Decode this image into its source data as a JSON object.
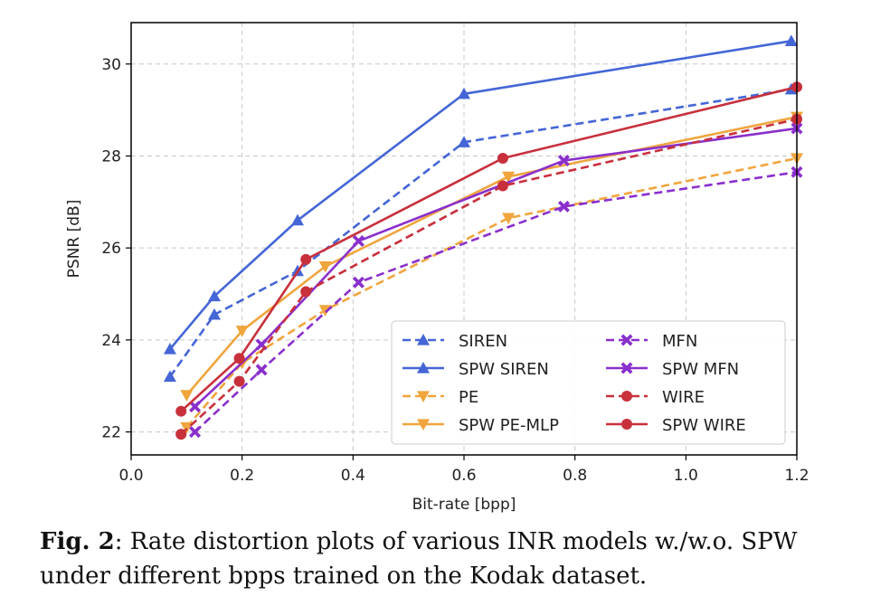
{
  "chart_data": {
    "type": "line",
    "xlabel": "Bit-rate [bpp]",
    "ylabel": "PSNR [dB]",
    "xlim": [
      0.0,
      1.2
    ],
    "ylim": [
      21.5,
      30.9
    ],
    "xticks": [
      0.0,
      0.2,
      0.4,
      0.6,
      0.8,
      1.0,
      1.2
    ],
    "xtick_labels": [
      "0.0",
      "0.2",
      "0.4",
      "0.6",
      "0.8",
      "1.0",
      "1.2"
    ],
    "yticks": [
      22,
      24,
      26,
      28,
      30
    ],
    "ytick_labels": [
      "22",
      "24",
      "26",
      "28",
      "30"
    ],
    "grid": true,
    "legend_placement": "lower-right",
    "series": [
      {
        "name": "SIREN",
        "color": "#4466d6",
        "dash": true,
        "marker": "triangle-up",
        "x": [
          0.07,
          0.15,
          0.3,
          0.6,
          1.19
        ],
        "y": [
          23.2,
          24.55,
          25.5,
          28.3,
          29.45
        ]
      },
      {
        "name": "SPW SIREN",
        "color": "#4466d6",
        "dash": false,
        "marker": "triangle-up",
        "x": [
          0.07,
          0.15,
          0.3,
          0.6,
          1.19
        ],
        "y": [
          23.8,
          24.95,
          26.6,
          29.35,
          30.5
        ]
      },
      {
        "name": "PE",
        "color": "#f0a53d",
        "dash": true,
        "marker": "triangle-down",
        "x": [
          0.1,
          0.2,
          0.35,
          0.68,
          1.2
        ],
        "y": [
          22.1,
          23.5,
          24.65,
          26.65,
          27.95
        ]
      },
      {
        "name": "SPW PE-MLP",
        "color": "#f0a53d",
        "dash": false,
        "marker": "triangle-down",
        "x": [
          0.1,
          0.2,
          0.35,
          0.68,
          1.2
        ],
        "y": [
          22.8,
          24.2,
          25.6,
          27.55,
          28.85
        ]
      },
      {
        "name": "MFN",
        "color": "#8a2fcc",
        "dash": true,
        "marker": "x-filled",
        "x": [
          0.115,
          0.235,
          0.41,
          0.78,
          1.2
        ],
        "y": [
          22.0,
          23.35,
          25.25,
          26.9,
          27.65
        ]
      },
      {
        "name": "SPW MFN",
        "color": "#8a2fcc",
        "dash": false,
        "marker": "x-filled",
        "x": [
          0.115,
          0.235,
          0.41,
          0.78,
          1.2
        ],
        "y": [
          22.55,
          23.9,
          26.15,
          27.9,
          28.6
        ]
      },
      {
        "name": "WIRE",
        "color": "#c8303c",
        "dash": true,
        "marker": "circle",
        "x": [
          0.09,
          0.195,
          0.315,
          0.67,
          1.2
        ],
        "y": [
          21.95,
          23.1,
          25.05,
          27.35,
          28.8
        ]
      },
      {
        "name": "SPW WIRE",
        "color": "#c8303c",
        "dash": false,
        "marker": "circle",
        "x": [
          0.09,
          0.195,
          0.315,
          0.67,
          1.2
        ],
        "y": [
          22.45,
          23.6,
          25.75,
          27.95,
          29.5
        ]
      }
    ]
  },
  "caption": {
    "label": "Fig. 2",
    "text": ": Rate distortion plots of various INR models w./w.o. SPW under different bpps trained on the Kodak dataset."
  }
}
